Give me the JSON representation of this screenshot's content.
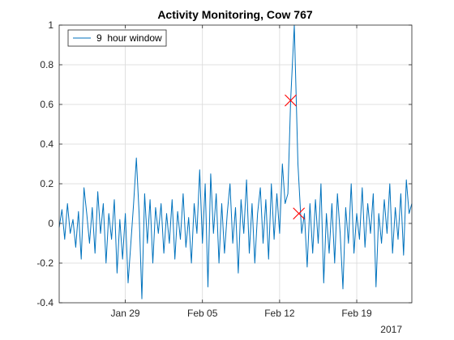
{
  "chart_data": {
    "type": "line",
    "title": "Activity Monitoring, Cow 767",
    "xlabel": "",
    "ylabel": "",
    "year_label": "2017",
    "xlim": [
      "2017-01-23",
      "2017-02-24"
    ],
    "ylim": [
      -0.4,
      1.0
    ],
    "x_ticks": [
      {
        "date": "2017-01-29",
        "label": "Jan 29"
      },
      {
        "date": "2017-02-05",
        "label": "Feb 05"
      },
      {
        "date": "2017-02-12",
        "label": "Feb 12"
      },
      {
        "date": "2017-02-19",
        "label": "Feb 19"
      }
    ],
    "y_ticks": [
      {
        "value": -0.4,
        "label": "-0.4"
      },
      {
        "value": -0.2,
        "label": "-0.2"
      },
      {
        "value": 0,
        "label": "0"
      },
      {
        "value": 0.2,
        "label": "0.2"
      },
      {
        "value": 0.4,
        "label": "0.4"
      },
      {
        "value": 0.6,
        "label": "0.6"
      },
      {
        "value": 0.8,
        "label": "0.8"
      },
      {
        "value": 1,
        "label": "1"
      }
    ],
    "grid": true,
    "legend": {
      "position": "top-left",
      "entries": [
        "9  hour window"
      ]
    },
    "series": [
      {
        "name": "9  hour window",
        "color": "#0072bd",
        "points": [
          [
            "2017-01-23 00:00",
            -0.02
          ],
          [
            "2017-01-23 06:00",
            0.07
          ],
          [
            "2017-01-23 12:00",
            -0.08
          ],
          [
            "2017-01-23 18:00",
            0.1
          ],
          [
            "2017-01-24 00:00",
            -0.05
          ],
          [
            "2017-01-24 06:00",
            0.02
          ],
          [
            "2017-01-24 12:00",
            -0.12
          ],
          [
            "2017-01-24 18:00",
            0.06
          ],
          [
            "2017-01-25 00:00",
            -0.18
          ],
          [
            "2017-01-25 06:00",
            0.18
          ],
          [
            "2017-01-25 12:00",
            0.05
          ],
          [
            "2017-01-25 18:00",
            -0.1
          ],
          [
            "2017-01-26 00:00",
            0.08
          ],
          [
            "2017-01-26 06:00",
            -0.15
          ],
          [
            "2017-01-26 12:00",
            0.16
          ],
          [
            "2017-01-26 18:00",
            -0.05
          ],
          [
            "2017-01-27 00:00",
            0.1
          ],
          [
            "2017-01-27 06:00",
            -0.2
          ],
          [
            "2017-01-27 12:00",
            0.05
          ],
          [
            "2017-01-27 18:00",
            -0.08
          ],
          [
            "2017-01-28 00:00",
            0.12
          ],
          [
            "2017-01-28 06:00",
            -0.25
          ],
          [
            "2017-01-28 12:00",
            0.02
          ],
          [
            "2017-01-28 18:00",
            -0.18
          ],
          [
            "2017-01-29 00:00",
            0.05
          ],
          [
            "2017-01-29 06:00",
            -0.3
          ],
          [
            "2017-01-29 12:00",
            -0.1
          ],
          [
            "2017-01-29 18:00",
            0.1
          ],
          [
            "2017-01-30 00:00",
            0.33
          ],
          [
            "2017-01-30 06:00",
            0.05
          ],
          [
            "2017-01-30 12:00",
            -0.38
          ],
          [
            "2017-01-30 18:00",
            0.15
          ],
          [
            "2017-01-31 00:00",
            -0.1
          ],
          [
            "2017-01-31 06:00",
            0.12
          ],
          [
            "2017-01-31 12:00",
            -0.2
          ],
          [
            "2017-01-31 18:00",
            0.08
          ],
          [
            "2017-02-01 00:00",
            -0.05
          ],
          [
            "2017-02-01 06:00",
            0.1
          ],
          [
            "2017-02-01 12:00",
            -0.15
          ],
          [
            "2017-02-01 18:00",
            0.05
          ],
          [
            "2017-02-02 00:00",
            -0.1
          ],
          [
            "2017-02-02 06:00",
            0.12
          ],
          [
            "2017-02-02 12:00",
            -0.18
          ],
          [
            "2017-02-02 18:00",
            0.06
          ],
          [
            "2017-02-03 00:00",
            -0.08
          ],
          [
            "2017-02-03 06:00",
            0.15
          ],
          [
            "2017-02-03 12:00",
            -0.12
          ],
          [
            "2017-02-03 18:00",
            0.03
          ],
          [
            "2017-02-04 00:00",
            -0.2
          ],
          [
            "2017-02-04 06:00",
            0.1
          ],
          [
            "2017-02-04 12:00",
            -0.05
          ],
          [
            "2017-02-04 18:00",
            0.27
          ],
          [
            "2017-02-05 00:00",
            -0.1
          ],
          [
            "2017-02-05 06:00",
            0.2
          ],
          [
            "2017-02-05 12:00",
            -0.32
          ],
          [
            "2017-02-05 18:00",
            0.25
          ],
          [
            "2017-02-06 00:00",
            -0.05
          ],
          [
            "2017-02-06 06:00",
            0.15
          ],
          [
            "2017-02-06 12:00",
            -0.2
          ],
          [
            "2017-02-06 18:00",
            0.1
          ],
          [
            "2017-02-07 00:00",
            -0.15
          ],
          [
            "2017-02-07 06:00",
            0.05
          ],
          [
            "2017-02-07 12:00",
            0.2
          ],
          [
            "2017-02-07 18:00",
            -0.1
          ],
          [
            "2017-02-08 00:00",
            0.08
          ],
          [
            "2017-02-08 06:00",
            -0.25
          ],
          [
            "2017-02-08 12:00",
            0.12
          ],
          [
            "2017-02-08 18:00",
            -0.05
          ],
          [
            "2017-02-09 00:00",
            0.22
          ],
          [
            "2017-02-09 06:00",
            -0.15
          ],
          [
            "2017-02-09 12:00",
            0.1
          ],
          [
            "2017-02-09 18:00",
            -0.2
          ],
          [
            "2017-02-10 00:00",
            0.05
          ],
          [
            "2017-02-10 06:00",
            0.18
          ],
          [
            "2017-02-10 12:00",
            -0.1
          ],
          [
            "2017-02-10 18:00",
            0.12
          ],
          [
            "2017-02-11 00:00",
            -0.18
          ],
          [
            "2017-02-11 06:00",
            0.2
          ],
          [
            "2017-02-11 12:00",
            -0.08
          ],
          [
            "2017-02-11 18:00",
            0.15
          ],
          [
            "2017-02-12 00:00",
            -0.05
          ],
          [
            "2017-02-12 06:00",
            0.3
          ],
          [
            "2017-02-12 12:00",
            0.1
          ],
          [
            "2017-02-12 18:00",
            0.15
          ],
          [
            "2017-02-13 00:00",
            0.62
          ],
          [
            "2017-02-13 08:00",
            1.0
          ],
          [
            "2017-02-13 16:00",
            0.3
          ],
          [
            "2017-02-14 00:00",
            -0.05
          ],
          [
            "2017-02-14 06:00",
            0.05
          ],
          [
            "2017-02-14 12:00",
            -0.22
          ],
          [
            "2017-02-14 18:00",
            0.1
          ],
          [
            "2017-02-15 00:00",
            -0.15
          ],
          [
            "2017-02-15 06:00",
            0.12
          ],
          [
            "2017-02-15 12:00",
            -0.1
          ],
          [
            "2017-02-15 18:00",
            0.2
          ],
          [
            "2017-02-16 00:00",
            -0.3
          ],
          [
            "2017-02-16 06:00",
            0.05
          ],
          [
            "2017-02-16 12:00",
            -0.15
          ],
          [
            "2017-02-16 18:00",
            0.1
          ],
          [
            "2017-02-17 00:00",
            -0.2
          ],
          [
            "2017-02-17 06:00",
            0.15
          ],
          [
            "2017-02-17 12:00",
            -0.05
          ],
          [
            "2017-02-17 18:00",
            -0.33
          ],
          [
            "2017-02-18 00:00",
            0.08
          ],
          [
            "2017-02-18 06:00",
            -0.1
          ],
          [
            "2017-02-18 12:00",
            0.2
          ],
          [
            "2017-02-18 18:00",
            -0.15
          ],
          [
            "2017-02-19 00:00",
            0.05
          ],
          [
            "2017-02-19 06:00",
            -0.08
          ],
          [
            "2017-02-19 12:00",
            0.18
          ],
          [
            "2017-02-19 18:00",
            -0.12
          ],
          [
            "2017-02-20 00:00",
            0.1
          ],
          [
            "2017-02-20 06:00",
            -0.05
          ],
          [
            "2017-02-20 12:00",
            0.15
          ],
          [
            "2017-02-20 18:00",
            -0.32
          ],
          [
            "2017-02-21 00:00",
            0.05
          ],
          [
            "2017-02-21 06:00",
            -0.1
          ],
          [
            "2017-02-21 12:00",
            0.12
          ],
          [
            "2017-02-21 18:00",
            -0.05
          ],
          [
            "2017-02-22 00:00",
            0.2
          ],
          [
            "2017-02-22 06:00",
            -0.15
          ],
          [
            "2017-02-22 12:00",
            0.08
          ],
          [
            "2017-02-22 18:00",
            -0.08
          ],
          [
            "2017-02-23 00:00",
            0.15
          ],
          [
            "2017-02-23 06:00",
            -0.16
          ],
          [
            "2017-02-23 12:00",
            0.22
          ],
          [
            "2017-02-23 18:00",
            0.05
          ],
          [
            "2017-02-24 00:00",
            0.1
          ]
        ]
      }
    ],
    "markers": {
      "symbol": "x",
      "color": "#ff0000",
      "points": [
        [
          "2017-02-13 00:00",
          0.62
        ],
        [
          "2017-02-13 18:00",
          0.05
        ]
      ]
    }
  }
}
